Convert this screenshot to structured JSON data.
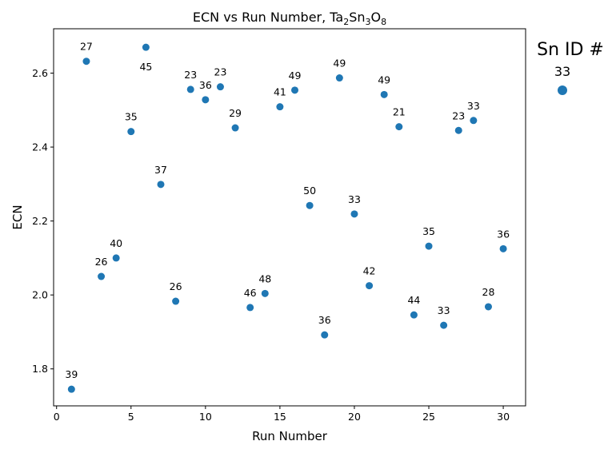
{
  "chart_data": {
    "type": "scatter",
    "title_parts": [
      {
        "text": "ECN vs Run Number, Ta",
        "sub": false
      },
      {
        "text": "2",
        "sub": true
      },
      {
        "text": "Sn",
        "sub": false
      },
      {
        "text": "3",
        "sub": true
      },
      {
        "text": "O",
        "sub": false
      },
      {
        "text": "8",
        "sub": true
      }
    ],
    "xlabel": "Run Number",
    "ylabel": "ECN",
    "xlim": [
      -0.2,
      31.5
    ],
    "ylim": [
      1.7,
      2.72
    ],
    "xticks": [
      0,
      5,
      10,
      15,
      20,
      25,
      30
    ],
    "xtick_labels": [
      "0",
      "5",
      "10",
      "15",
      "20",
      "25",
      "30"
    ],
    "yticks": [
      1.8,
      2.0,
      2.2,
      2.4,
      2.6
    ],
    "ytick_labels": [
      "1.8",
      "2.0",
      "2.2",
      "2.4",
      "2.6"
    ],
    "point_color": "#1f77b4",
    "points": [
      {
        "x": 1,
        "y": 1.745,
        "label": "39",
        "label_pos": "above"
      },
      {
        "x": 2,
        "y": 2.632,
        "label": "27",
        "label_pos": "above"
      },
      {
        "x": 3,
        "y": 2.05,
        "label": "26",
        "label_pos": "above"
      },
      {
        "x": 4,
        "y": 2.1,
        "label": "40",
        "label_pos": "above"
      },
      {
        "x": 5,
        "y": 2.442,
        "label": "35",
        "label_pos": "above"
      },
      {
        "x": 6,
        "y": 2.67,
        "label": "45",
        "label_pos": "below"
      },
      {
        "x": 7,
        "y": 2.299,
        "label": "37",
        "label_pos": "above"
      },
      {
        "x": 8,
        "y": 1.983,
        "label": "26",
        "label_pos": "above"
      },
      {
        "x": 9,
        "y": 2.556,
        "label": "23",
        "label_pos": "above"
      },
      {
        "x": 10,
        "y": 2.528,
        "label": "36",
        "label_pos": "above"
      },
      {
        "x": 11,
        "y": 2.563,
        "label": "23",
        "label_pos": "above"
      },
      {
        "x": 12,
        "y": 2.452,
        "label": "29",
        "label_pos": "above"
      },
      {
        "x": 13,
        "y": 1.966,
        "label": "46",
        "label_pos": "above"
      },
      {
        "x": 14,
        "y": 2.004,
        "label": "48",
        "label_pos": "above"
      },
      {
        "x": 15,
        "y": 2.509,
        "label": "41",
        "label_pos": "above"
      },
      {
        "x": 16,
        "y": 2.554,
        "label": "49",
        "label_pos": "above"
      },
      {
        "x": 17,
        "y": 2.242,
        "label": "50",
        "label_pos": "above"
      },
      {
        "x": 18,
        "y": 1.892,
        "label": "36",
        "label_pos": "above"
      },
      {
        "x": 19,
        "y": 2.587,
        "label": "49",
        "label_pos": "above"
      },
      {
        "x": 20,
        "y": 2.219,
        "label": "33",
        "label_pos": "above"
      },
      {
        "x": 21,
        "y": 2.025,
        "label": "42",
        "label_pos": "above"
      },
      {
        "x": 22,
        "y": 2.542,
        "label": "49",
        "label_pos": "above"
      },
      {
        "x": 23,
        "y": 2.455,
        "label": "21",
        "label_pos": "above"
      },
      {
        "x": 24,
        "y": 1.946,
        "label": "44",
        "label_pos": "above"
      },
      {
        "x": 25,
        "y": 2.132,
        "label": "35",
        "label_pos": "above"
      },
      {
        "x": 26,
        "y": 1.918,
        "label": "33",
        "label_pos": "above"
      },
      {
        "x": 27,
        "y": 2.445,
        "label": "23",
        "label_pos": "above"
      },
      {
        "x": 28,
        "y": 2.472,
        "label": "33",
        "label_pos": "above"
      },
      {
        "x": 29,
        "y": 1.968,
        "label": "28",
        "label_pos": "above"
      },
      {
        "x": 30,
        "y": 2.125,
        "label": "36",
        "label_pos": "above"
      }
    ],
    "legend": {
      "title": "Sn ID #",
      "entry_label": "33",
      "placement": "right, outside"
    }
  }
}
